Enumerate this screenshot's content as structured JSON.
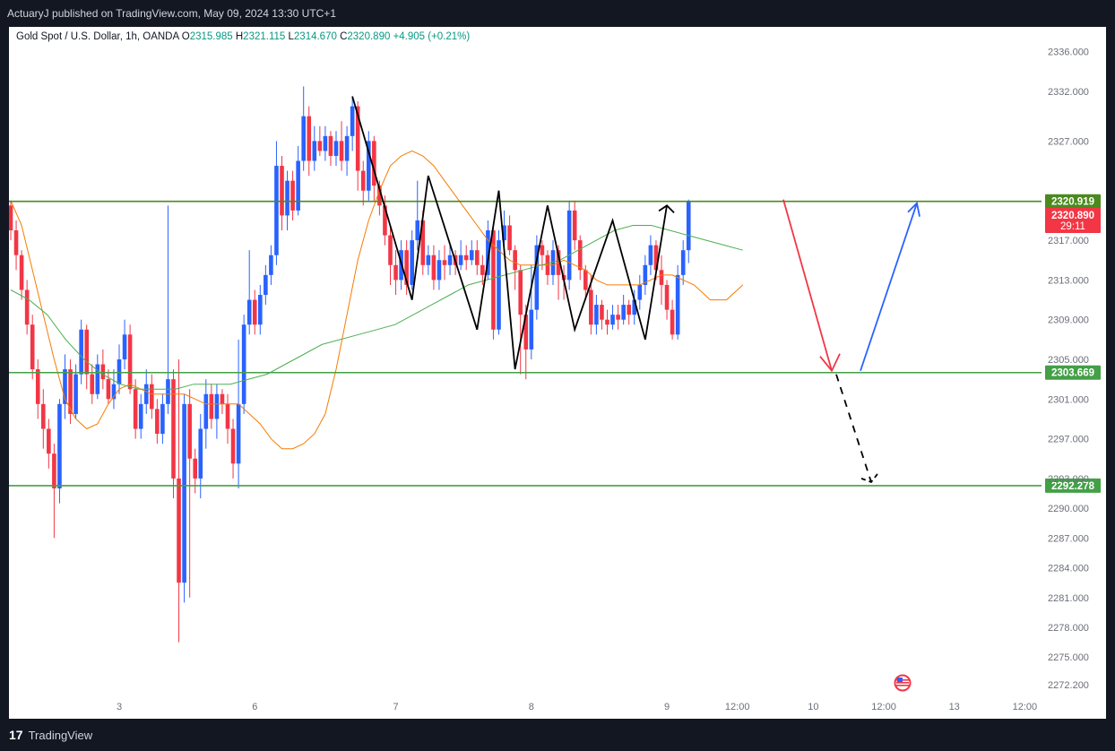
{
  "header": {
    "publisher_text": "ActuaryJ published on TradingView.com, May 09, 2024 13:30 UTC+1"
  },
  "legend": {
    "symbol": "Gold Spot / U.S. Dollar, 1h, OANDA",
    "open_label": "O",
    "open": "2315.985",
    "high_label": "H",
    "high": "2321.115",
    "low_label": "L",
    "low": "2314.670",
    "close_label": "C",
    "close": "2320.890",
    "change": "+4.905 (+0.21%)"
  },
  "footer": {
    "brand": "TradingView",
    "logo_glyph": "17"
  },
  "chart_data": {
    "type": "candlestick",
    "y_ticks": [
      "2336.000",
      "2332.000",
      "2327.000",
      "2317.000",
      "2313.000",
      "2309.000",
      "2305.000",
      "2301.000",
      "2297.000",
      "2293.000",
      "2290.000",
      "2287.000",
      "2284.000",
      "2281.000",
      "2278.000",
      "2275.000",
      "2272.200"
    ],
    "x_ticks": [
      "3",
      "6",
      "7",
      "8",
      "9",
      "12:00",
      "10",
      "12:00",
      "13",
      "12:00"
    ],
    "ylim": [
      2271.5,
      2338.5
    ],
    "levels": [
      {
        "value": 2320.919,
        "label": "2320.919",
        "color": "#4b8a1e"
      },
      {
        "value": 2303.669,
        "label": "2303.669",
        "color": "#43a047"
      },
      {
        "value": 2292.278,
        "label": "2292.278",
        "color": "#43a047"
      }
    ],
    "price_tag": {
      "price": "2320.890",
      "countdown": "29:11",
      "color": "#f23645"
    },
    "colors": {
      "up": "#2962ff",
      "down": "#f23645",
      "ema_fast": "#f57c00",
      "ema_slow": "#4caf50",
      "zigzag": "#000000"
    },
    "candles": [
      [
        2320.5,
        2318.0,
        2321.0,
        2317.0
      ],
      [
        2318.0,
        2315.5,
        2319.0,
        2314.0
      ],
      [
        2315.5,
        2312.0,
        2316.0,
        2311.0
      ],
      [
        2312.0,
        2308.5,
        2313.0,
        2307.5
      ],
      [
        2308.5,
        2304.0,
        2309.5,
        2303.0
      ],
      [
        2304.0,
        2300.5,
        2305.0,
        2299.0
      ],
      [
        2300.5,
        2298.0,
        2302.0,
        2296.0
      ],
      [
        2298.0,
        2295.5,
        2299.0,
        2294.0
      ],
      [
        2295.5,
        2292.0,
        2296.5,
        2287.0
      ],
      [
        2292.0,
        2300.5,
        2301.0,
        2290.5
      ],
      [
        2300.5,
        2304.0,
        2305.5,
        2299.0
      ],
      [
        2304.0,
        2299.5,
        2305.0,
        2298.5
      ],
      [
        2299.5,
        2303.5,
        2304.5,
        2299.0
      ],
      [
        2303.5,
        2308.0,
        2309.0,
        2302.5
      ],
      [
        2308.0,
        2303.5,
        2308.5,
        2302.0
      ],
      [
        2303.5,
        2301.5,
        2304.5,
        2300.5
      ],
      [
        2301.5,
        2304.5,
        2305.5,
        2301.0
      ],
      [
        2304.5,
        2303.0,
        2306.0,
        2302.0
      ],
      [
        2303.0,
        2301.0,
        2304.0,
        2300.5
      ],
      [
        2301.0,
        2302.5,
        2304.0,
        2300.0
      ],
      [
        2302.5,
        2305.0,
        2306.5,
        2301.5
      ],
      [
        2305.0,
        2307.5,
        2309.0,
        2304.0
      ],
      [
        2307.5,
        2302.0,
        2308.5,
        2301.5
      ],
      [
        2302.0,
        2298.0,
        2303.0,
        2297.0
      ],
      [
        2298.0,
        2300.5,
        2301.5,
        2297.0
      ],
      [
        2300.5,
        2302.5,
        2304.0,
        2299.5
      ],
      [
        2302.5,
        2300.0,
        2303.5,
        2299.0
      ],
      [
        2300.0,
        2297.5,
        2301.0,
        2296.5
      ],
      [
        2297.5,
        2300.5,
        2301.5,
        2296.5
      ],
      [
        2300.5,
        2303.0,
        2320.5,
        2299.5
      ],
      [
        2303.0,
        2293.0,
        2304.0,
        2291.0
      ],
      [
        2293.0,
        2282.5,
        2305.0,
        2276.5
      ],
      [
        2282.5,
        2300.5,
        2301.5,
        2280.5
      ],
      [
        2300.5,
        2295.0,
        2302.0,
        2281.0
      ],
      [
        2295.0,
        2293.0,
        2296.0,
        2291.5
      ],
      [
        2293.0,
        2298.0,
        2299.5,
        2291.0
      ],
      [
        2298.0,
        2301.5,
        2303.0,
        2296.0
      ],
      [
        2301.5,
        2299.0,
        2302.5,
        2298.0
      ],
      [
        2299.0,
        2301.5,
        2302.5,
        2297.0
      ],
      [
        2301.5,
        2300.5,
        2302.0,
        2299.5
      ],
      [
        2300.5,
        2298.0,
        2301.5,
        2296.5
      ],
      [
        2298.0,
        2294.5,
        2299.0,
        2293.0
      ],
      [
        2294.5,
        2300.5,
        2307.0,
        2292.0
      ],
      [
        2300.5,
        2308.5,
        2309.5,
        2299.5
      ],
      [
        2308.5,
        2311.0,
        2316.0,
        2307.5
      ],
      [
        2311.0,
        2308.5,
        2312.0,
        2307.5
      ],
      [
        2308.5,
        2311.5,
        2312.5,
        2307.5
      ],
      [
        2311.5,
        2313.5,
        2314.5,
        2310.5
      ],
      [
        2313.5,
        2315.5,
        2316.5,
        2312.5
      ],
      [
        2315.5,
        2324.5,
        2327.0,
        2314.5
      ],
      [
        2324.5,
        2319.5,
        2325.5,
        2318.0
      ],
      [
        2319.5,
        2323.0,
        2324.0,
        2318.0
      ],
      [
        2323.0,
        2320.0,
        2324.0,
        2319.0
      ],
      [
        2320.0,
        2325.0,
        2326.5,
        2319.5
      ],
      [
        2325.0,
        2329.5,
        2332.5,
        2324.0
      ],
      [
        2329.5,
        2325.0,
        2330.5,
        2323.5
      ],
      [
        2325.0,
        2327.0,
        2328.5,
        2324.0
      ],
      [
        2327.0,
        2326.0,
        2328.5,
        2325.5
      ],
      [
        2326.0,
        2327.5,
        2328.5,
        2325.0
      ],
      [
        2327.5,
        2325.5,
        2328.0,
        2324.5
      ],
      [
        2325.5,
        2327.0,
        2328.0,
        2324.5
      ],
      [
        2327.0,
        2325.0,
        2329.0,
        2324.0
      ],
      [
        2325.0,
        2327.5,
        2328.5,
        2323.5
      ],
      [
        2327.5,
        2330.5,
        2331.5,
        2326.0
      ],
      [
        2330.5,
        2324.0,
        2331.0,
        2322.0
      ],
      [
        2324.0,
        2322.0,
        2325.0,
        2320.5
      ],
      [
        2322.0,
        2327.0,
        2328.0,
        2321.0
      ],
      [
        2327.0,
        2322.5,
        2327.5,
        2321.0
      ],
      [
        2322.5,
        2320.5,
        2323.0,
        2319.5
      ],
      [
        2320.5,
        2317.5,
        2321.5,
        2316.5
      ],
      [
        2317.5,
        2314.5,
        2318.5,
        2312.5
      ],
      [
        2314.5,
        2313.0,
        2316.0,
        2311.5
      ],
      [
        2313.0,
        2316.0,
        2317.0,
        2312.0
      ],
      [
        2316.0,
        2312.5,
        2317.0,
        2311.5
      ],
      [
        2312.5,
        2317.0,
        2318.0,
        2312.0
      ],
      [
        2317.0,
        2319.0,
        2323.0,
        2316.0
      ],
      [
        2319.0,
        2314.5,
        2320.0,
        2313.5
      ],
      [
        2314.5,
        2315.5,
        2316.5,
        2313.5
      ],
      [
        2315.5,
        2313.0,
        2316.5,
        2312.0
      ],
      [
        2313.0,
        2315.0,
        2316.0,
        2312.0
      ],
      [
        2315.0,
        2314.5,
        2316.5,
        2313.0
      ],
      [
        2314.5,
        2315.5,
        2316.5,
        2313.5
      ],
      [
        2315.5,
        2314.5,
        2316.0,
        2313.5
      ],
      [
        2314.5,
        2315.5,
        2317.0,
        2314.0
      ],
      [
        2315.5,
        2315.0,
        2316.5,
        2314.0
      ],
      [
        2315.0,
        2316.0,
        2317.0,
        2314.5
      ],
      [
        2316.0,
        2314.5,
        2317.0,
        2313.5
      ],
      [
        2314.5,
        2313.5,
        2315.5,
        2312.5
      ],
      [
        2313.5,
        2318.0,
        2319.0,
        2313.0
      ],
      [
        2318.0,
        2308.0,
        2318.5,
        2307.0
      ],
      [
        2308.0,
        2317.0,
        2318.0,
        2307.5
      ],
      [
        2317.0,
        2318.5,
        2320.0,
        2316.5
      ],
      [
        2318.5,
        2316.0,
        2319.5,
        2315.5
      ],
      [
        2316.0,
        2314.0,
        2316.5,
        2312.0
      ],
      [
        2314.0,
        2309.5,
        2314.5,
        2303.5
      ],
      [
        2309.5,
        2306.0,
        2310.5,
        2303.0
      ],
      [
        2306.0,
        2310.0,
        2314.5,
        2305.0
      ],
      [
        2310.0,
        2316.5,
        2317.5,
        2309.0
      ],
      [
        2316.5,
        2315.5,
        2317.0,
        2314.0
      ],
      [
        2315.5,
        2313.5,
        2316.0,
        2312.5
      ],
      [
        2313.5,
        2316.0,
        2317.0,
        2312.5
      ],
      [
        2316.0,
        2313.5,
        2316.5,
        2311.0
      ],
      [
        2313.5,
        2313.0,
        2314.5,
        2311.0
      ],
      [
        2313.0,
        2320.0,
        2321.0,
        2312.0
      ],
      [
        2320.0,
        2317.0,
        2321.0,
        2316.0
      ],
      [
        2317.0,
        2314.0,
        2317.5,
        2313.0
      ],
      [
        2314.0,
        2312.0,
        2314.5,
        2311.0
      ],
      [
        2312.0,
        2308.5,
        2313.5,
        2307.5
      ],
      [
        2308.5,
        2310.5,
        2311.5,
        2307.5
      ],
      [
        2310.5,
        2309.0,
        2311.0,
        2308.0
      ],
      [
        2309.0,
        2308.5,
        2310.0,
        2307.5
      ],
      [
        2308.5,
        2309.5,
        2310.5,
        2308.0
      ],
      [
        2309.5,
        2309.0,
        2310.5,
        2308.0
      ],
      [
        2309.0,
        2310.5,
        2311.5,
        2308.5
      ],
      [
        2310.5,
        2309.5,
        2311.0,
        2308.5
      ],
      [
        2309.5,
        2311.0,
        2312.0,
        2308.5
      ],
      [
        2311.0,
        2312.5,
        2313.5,
        2310.0
      ],
      [
        2312.5,
        2314.5,
        2315.5,
        2311.5
      ],
      [
        2314.5,
        2316.5,
        2317.5,
        2313.5
      ],
      [
        2316.5,
        2314.0,
        2317.0,
        2313.0
      ],
      [
        2314.0,
        2312.5,
        2315.5,
        2310.5
      ],
      [
        2312.5,
        2310.0,
        2313.0,
        2309.0
      ],
      [
        2310.0,
        2307.5,
        2311.0,
        2307.0
      ],
      [
        2307.5,
        2313.5,
        2314.5,
        2307.0
      ],
      [
        2313.5,
        2316.0,
        2317.0,
        2312.5
      ],
      [
        2316.0,
        2320.9,
        2321.1,
        2314.7
      ]
    ],
    "ema_fast": [
      2321.0,
      2318.5,
      2314.0,
      2309.5,
      2305.0,
      2301.0,
      2299.0,
      2298.0,
      2298.5,
      2300.5,
      2302.0,
      2302.5,
      2302.0,
      2301.5,
      2301.5,
      2301.5,
      2301.5,
      2301.0,
      2300.5,
      2300.5,
      2300.5,
      2300.5,
      2299.5,
      2298.5,
      2297.0,
      2296.0,
      2296.0,
      2296.5,
      2297.5,
      2299.5,
      2304.0,
      2309.5,
      2315.0,
      2319.0,
      2322.0,
      2324.5,
      2325.5,
      2326.0,
      2325.5,
      2324.5,
      2323.0,
      2321.5,
      2320.0,
      2318.5,
      2317.0,
      2316.0,
      2315.0,
      2314.5,
      2314.5,
      2314.5,
      2314.5,
      2315.0,
      2314.5,
      2314.0,
      2313.0,
      2312.5,
      2312.5,
      2312.5,
      2312.5,
      2313.0,
      2313.5,
      2313.5,
      2313.0,
      2312.5,
      2311.5,
      2311.0,
      2311.0,
      2311.0,
      2311.0,
      2311.5,
      2312.0,
      2312.5
    ],
    "ema_fast_x": [
      0,
      2,
      4,
      6,
      8,
      10,
      12,
      14,
      16,
      18,
      20,
      22,
      24,
      26,
      28,
      30,
      32,
      34,
      36,
      38,
      40,
      42,
      44,
      46,
      48,
      50,
      52,
      54,
      56,
      58,
      60,
      62,
      64,
      66,
      68,
      70,
      72,
      74,
      76,
      78,
      80,
      82,
      84,
      86,
      88,
      90,
      92,
      94,
      96,
      98,
      100,
      102,
      104,
      106,
      108,
      110,
      112,
      114,
      116,
      118,
      120,
      122,
      124,
      126,
      128,
      129,
      130,
      131,
      132,
      133,
      134,
      135
    ],
    "ema_slow": [
      2312.0,
      2311.0,
      2309.5,
      2307.0,
      2305.0,
      2303.5,
      2302.5,
      2302.0,
      2302.0,
      2302.0,
      2302.5,
      2302.5,
      2302.5,
      2303.0,
      2303.5,
      2304.5,
      2305.5,
      2306.5,
      2307.0,
      2307.5,
      2308.0,
      2308.5,
      2309.5,
      2310.5,
      2311.5,
      2312.5,
      2313.0,
      2313.5,
      2314.0,
      2314.5,
      2315.0,
      2316.0,
      2317.0,
      2318.0,
      2318.5,
      2318.5,
      2318.0,
      2317.5,
      2317.0,
      2316.5,
      2316.0
    ],
    "zigzag": [
      [
        63,
        2331.5
      ],
      [
        74,
        2311.0
      ],
      [
        77,
        2323.5
      ],
      [
        86,
        2308.0
      ],
      [
        90,
        2322.0
      ],
      [
        93,
        2304.0
      ],
      [
        99,
        2320.5
      ],
      [
        104,
        2308.0
      ],
      [
        111,
        2319.0
      ],
      [
        117,
        2307.0
      ],
      [
        121,
        2320.5
      ]
    ]
  }
}
